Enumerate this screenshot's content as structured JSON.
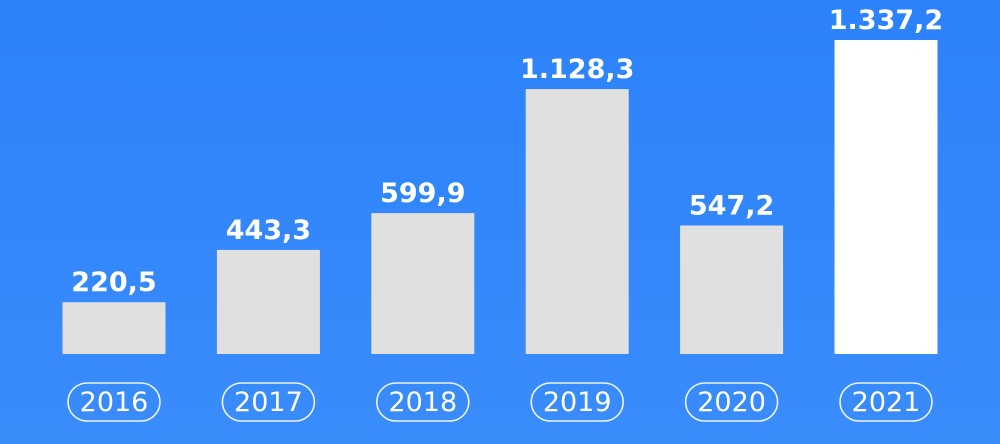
{
  "colors": {
    "background": "#2f86f9",
    "bar": "#e0e0e0",
    "bar_highlight": "#ffffff",
    "text": "#ffffff"
  },
  "chart_data": {
    "type": "bar",
    "categories": [
      "2016",
      "2017",
      "2018",
      "2019",
      "2020",
      "2021"
    ],
    "values": [
      220.5,
      443.3,
      599.9,
      1128.3,
      547.2,
      1337.2
    ],
    "value_labels": [
      "220,5",
      "443,3",
      "599,9",
      "1.128,3",
      "547,2",
      "1.337,2"
    ],
    "highlight_index": 5,
    "title": "",
    "xlabel": "",
    "ylabel": "",
    "ylim": [
      0,
      1337.2
    ],
    "grid": false,
    "legend": "none"
  }
}
